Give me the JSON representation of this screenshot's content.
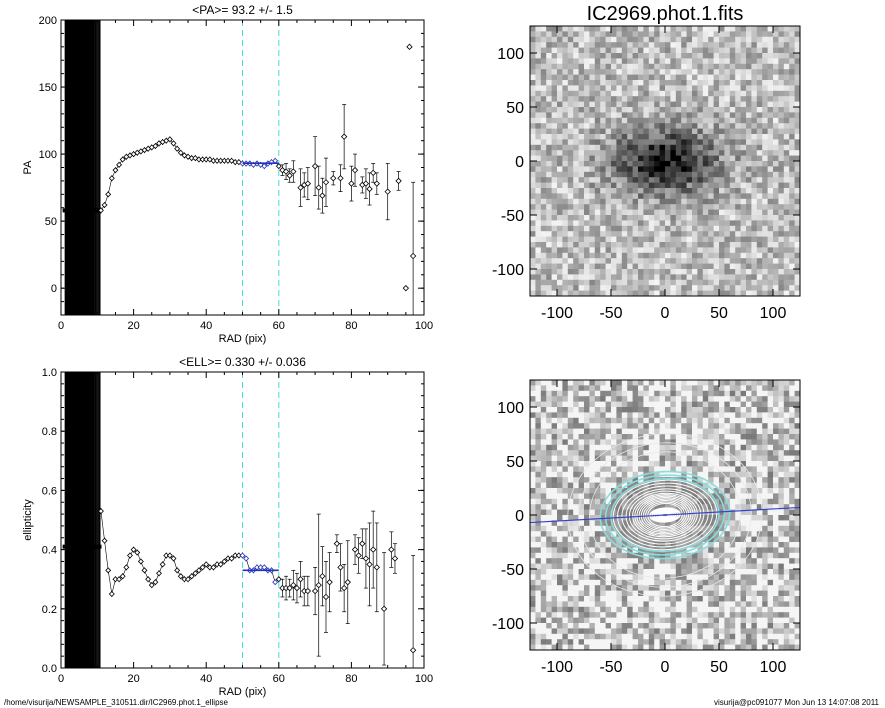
{
  "footer": {
    "left": "/home/visurija/NEWSAMPLE_310511.dir/IC2969.phot.1_ellipse",
    "right": "visurija@pc091077  Mon Jun 13 14:07:08 2011"
  },
  "chart_data": [
    {
      "type": "scatter",
      "title": "<PA>=  93.2 +/-   1.5",
      "xlabel": "RAD (pix)",
      "ylabel": "PA",
      "xlim": [
        0,
        100
      ],
      "ylim": [
        -20,
        200
      ],
      "xticks": [
        "0",
        "20",
        "40",
        "60",
        "80",
        "100"
      ],
      "yticks": [
        "0",
        "50",
        "100",
        "150",
        "200"
      ],
      "ytick_values": [
        0,
        50,
        100,
        150,
        200
      ],
      "vlines": [
        50,
        60
      ],
      "fit": {
        "x": [
          50,
          60
        ],
        "y": 93.2
      },
      "inner_y": 58,
      "dense_points": [
        [
          11,
          58
        ],
        [
          12,
          62
        ],
        [
          13,
          70
        ],
        [
          14,
          82
        ],
        [
          15,
          88
        ],
        [
          16,
          92
        ],
        [
          17,
          96
        ],
        [
          18,
          98
        ],
        [
          19,
          99
        ],
        [
          20,
          100
        ],
        [
          21,
          101
        ],
        [
          22,
          102
        ],
        [
          23,
          103
        ],
        [
          24,
          104
        ],
        [
          25,
          105
        ],
        [
          26,
          106
        ],
        [
          27,
          108
        ],
        [
          28,
          109
        ],
        [
          29,
          110
        ],
        [
          30,
          111
        ],
        [
          31,
          108
        ],
        [
          32,
          104
        ],
        [
          33,
          101
        ],
        [
          34,
          99
        ],
        [
          35,
          98
        ],
        [
          36,
          97
        ],
        [
          37,
          97
        ],
        [
          38,
          96
        ],
        [
          39,
          96
        ],
        [
          40,
          96
        ],
        [
          41,
          96
        ],
        [
          42,
          95
        ],
        [
          43,
          95
        ],
        [
          44,
          95
        ],
        [
          45,
          95
        ],
        [
          46,
          95
        ],
        [
          47,
          95
        ],
        [
          48,
          94
        ],
        [
          49,
          94
        ],
        [
          50,
          93
        ],
        [
          51,
          93
        ],
        [
          52,
          93
        ],
        [
          53,
          92
        ],
        [
          54,
          93
        ],
        [
          55,
          92
        ],
        [
          56,
          91
        ],
        [
          57,
          93
        ],
        [
          58,
          94
        ],
        [
          59,
          95
        ],
        [
          60,
          91
        ]
      ],
      "points": [
        {
          "x": 61,
          "y": 88,
          "e": 4
        },
        {
          "x": 62,
          "y": 87,
          "e": 6
        },
        {
          "x": 63,
          "y": 84,
          "e": 5
        },
        {
          "x": 64,
          "y": 87,
          "e": 8
        },
        {
          "x": 66,
          "y": 75,
          "e": 14
        },
        {
          "x": 67,
          "y": 77,
          "e": 9
        },
        {
          "x": 68,
          "y": 78,
          "e": 12
        },
        {
          "x": 70,
          "y": 91,
          "e": 22
        },
        {
          "x": 71,
          "y": 75,
          "e": 16
        },
        {
          "x": 72,
          "y": 69,
          "e": 13
        },
        {
          "x": 73,
          "y": 79,
          "e": 18
        },
        {
          "x": 75,
          "y": 82,
          "e": 5
        },
        {
          "x": 77,
          "y": 82,
          "e": 10
        },
        {
          "x": 78,
          "y": 113,
          "e": 24
        },
        {
          "x": 80,
          "y": 78,
          "e": 13
        },
        {
          "x": 81,
          "y": 88,
          "e": 12
        },
        {
          "x": 83,
          "y": 77,
          "e": 6
        },
        {
          "x": 84,
          "y": 78,
          "e": 11
        },
        {
          "x": 85,
          "y": 74,
          "e": 12
        },
        {
          "x": 86,
          "y": 86,
          "e": 7
        },
        {
          "x": 87,
          "y": 78,
          "e": 8
        },
        {
          "x": 90,
          "y": 72,
          "e": 21
        },
        {
          "x": 93,
          "y": 80,
          "e": 7
        },
        {
          "x": 95,
          "y": 0,
          "e": 0
        },
        {
          "x": 96,
          "y": 180,
          "e": 0
        },
        {
          "x": 97,
          "y": 24,
          "e": 55
        }
      ]
    },
    {
      "type": "scatter",
      "title": "<ELL>= 0.330 +/-  0.036",
      "xlabel": "RAD (pix)",
      "ylabel": "ellipticity",
      "xlim": [
        0,
        100
      ],
      "ylim": [
        0,
        1
      ],
      "xticks": [
        "0",
        "20",
        "40",
        "60",
        "80",
        "100"
      ],
      "yticks": [
        "0.0",
        "0.2",
        "0.4",
        "0.6",
        "0.8",
        "1.0"
      ],
      "ytick_values": [
        0,
        0.2,
        0.4,
        0.6,
        0.8,
        1.0
      ],
      "vlines": [
        50,
        60
      ],
      "fit": {
        "x": [
          50,
          60
        ],
        "y": 0.33
      },
      "inner_y": 0.41,
      "dense_points": [
        [
          11,
          0.53
        ],
        [
          12,
          0.43
        ],
        [
          13,
          0.33
        ],
        [
          14,
          0.25
        ],
        [
          15,
          0.3
        ],
        [
          16,
          0.3
        ],
        [
          17,
          0.31
        ],
        [
          18,
          0.34
        ],
        [
          19,
          0.38
        ],
        [
          20,
          0.4
        ],
        [
          21,
          0.39
        ],
        [
          22,
          0.36
        ],
        [
          23,
          0.33
        ],
        [
          24,
          0.3
        ],
        [
          25,
          0.28
        ],
        [
          26,
          0.29
        ],
        [
          27,
          0.32
        ],
        [
          28,
          0.35
        ],
        [
          29,
          0.38
        ],
        [
          30,
          0.38
        ],
        [
          31,
          0.37
        ],
        [
          32,
          0.33
        ],
        [
          33,
          0.31
        ],
        [
          34,
          0.3
        ],
        [
          35,
          0.3
        ],
        [
          36,
          0.31
        ],
        [
          37,
          0.32
        ],
        [
          38,
          0.33
        ],
        [
          39,
          0.34
        ],
        [
          40,
          0.35
        ],
        [
          41,
          0.34
        ],
        [
          42,
          0.34
        ],
        [
          43,
          0.35
        ],
        [
          44,
          0.35
        ],
        [
          45,
          0.36
        ],
        [
          46,
          0.37
        ],
        [
          47,
          0.37
        ],
        [
          48,
          0.38
        ],
        [
          49,
          0.38
        ],
        [
          50,
          0.38
        ],
        [
          51,
          0.37
        ],
        [
          52,
          0.33
        ],
        [
          53,
          0.33
        ],
        [
          54,
          0.34
        ],
        [
          55,
          0.34
        ],
        [
          56,
          0.34
        ],
        [
          57,
          0.33
        ],
        [
          58,
          0.33
        ],
        [
          59,
          0.29
        ],
        [
          60,
          0.3
        ]
      ],
      "points": [
        {
          "x": 61,
          "y": 0.27,
          "e": 0.03
        },
        {
          "x": 62,
          "y": 0.27,
          "e": 0.04
        },
        {
          "x": 63,
          "y": 0.27,
          "e": 0.03
        },
        {
          "x": 64,
          "y": 0.28,
          "e": 0.05
        },
        {
          "x": 65,
          "y": 0.27,
          "e": 0.05
        },
        {
          "x": 66,
          "y": 0.3,
          "e": 0.06
        },
        {
          "x": 67,
          "y": 0.26,
          "e": 0.05
        },
        {
          "x": 68,
          "y": 0.26,
          "e": 0.05
        },
        {
          "x": 70,
          "y": 0.26,
          "e": 0.08
        },
        {
          "x": 71,
          "y": 0.28,
          "e": 0.24
        },
        {
          "x": 72,
          "y": 0.31,
          "e": 0.1
        },
        {
          "x": 73,
          "y": 0.24,
          "e": 0.12
        },
        {
          "x": 74,
          "y": 0.29,
          "e": 0.1
        },
        {
          "x": 76,
          "y": 0.42,
          "e": 0.03
        },
        {
          "x": 77,
          "y": 0.34,
          "e": 0.08
        },
        {
          "x": 78,
          "y": 0.27,
          "e": 0.08
        },
        {
          "x": 79,
          "y": 0.29,
          "e": 0.14
        },
        {
          "x": 81,
          "y": 0.4,
          "e": 0.05
        },
        {
          "x": 82,
          "y": 0.38,
          "e": 0.06
        },
        {
          "x": 83,
          "y": 0.42,
          "e": 0.05
        },
        {
          "x": 84,
          "y": 0.37,
          "e": 0.1
        },
        {
          "x": 85,
          "y": 0.35,
          "e": 0.14
        },
        {
          "x": 86,
          "y": 0.4,
          "e": 0.13
        },
        {
          "x": 87,
          "y": 0.34,
          "e": 0.15
        },
        {
          "x": 89,
          "y": 0.2,
          "e": 0.19
        },
        {
          "x": 91,
          "y": 0.4,
          "e": 0.06
        },
        {
          "x": 92,
          "y": 0.37,
          "e": 0.05
        },
        {
          "x": 97,
          "y": 0.06,
          "e": 0.32
        }
      ]
    },
    {
      "type": "heatmap",
      "title": "IC2969.phot.1.fits",
      "xticks": [
        "-100",
        "-50",
        "0",
        "50",
        "100"
      ],
      "yticks": [
        "100",
        "50",
        "0",
        "-50",
        "-100"
      ],
      "tick_values": [
        -100,
        -50,
        0,
        50,
        100
      ],
      "xlim": [
        -125,
        125
      ],
      "ylim": [
        -125,
        125
      ],
      "galaxy_center": [
        0,
        0
      ],
      "colormap": "gray_reversed"
    },
    {
      "type": "heatmap",
      "xticks": [
        "-100",
        "-50",
        "0",
        "50",
        "100"
      ],
      "yticks": [
        "100",
        "50",
        "0",
        "-50",
        "-100"
      ],
      "tick_values": [
        -100,
        -50,
        0,
        50,
        100
      ],
      "xlim": [
        -125,
        125
      ],
      "ylim": [
        -125,
        125
      ],
      "pa_line_color": "#3344cc",
      "ellipse_color": "#ffffff",
      "fit_ring_color": "#88dddd",
      "ellipticity": 0.33,
      "position_angle": 93.2
    }
  ],
  "colors": {
    "axis": "#000000",
    "vline": "#44dddd",
    "fit": "#2233bb",
    "fit_points": "#2233bb"
  }
}
